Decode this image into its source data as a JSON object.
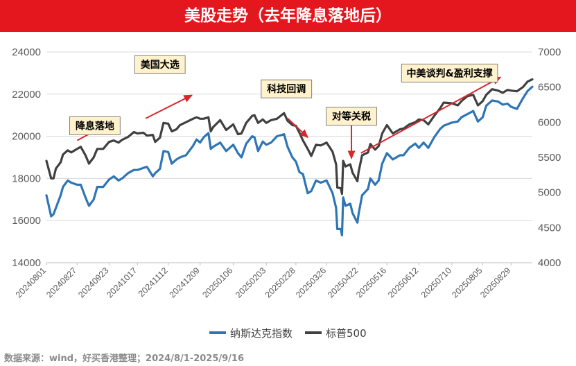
{
  "title": "美股走势（去年降息落地后）",
  "source": "数据来源：wind，好买香港整理；2024/8/1-2025/9/16",
  "colors": {
    "title_bg": "#e5171e",
    "nasdaq": "#2e75b6",
    "sp500": "#404040",
    "arrow": "#d9262b",
    "callout_bg": "#fff2cc",
    "axis_text": "#595959"
  },
  "chart_data": {
    "type": "line",
    "left_ylim": [
      14000,
      24000
    ],
    "left_yticks": [
      14000,
      16000,
      18000,
      20000,
      22000,
      24000
    ],
    "right_ylim": [
      4000,
      7000
    ],
    "right_yticks": [
      4000,
      4500,
      5000,
      5500,
      6000,
      6500,
      7000
    ],
    "x_ticks": [
      "20240801",
      "20240827",
      "20240923",
      "20241017",
      "20241112",
      "20241209",
      "20250106",
      "20250203",
      "20250228",
      "20250326",
      "20250422",
      "20250516",
      "20250612",
      "20250710",
      "20250805",
      "20250829"
    ],
    "grid": true,
    "legend_position": "bottom",
    "series": [
      {
        "name": "纳斯达克指数",
        "axis": "left",
        "x": [
          "20240801",
          "20240805",
          "20240807",
          "20240809",
          "20240813",
          "20240815",
          "20240819",
          "20240822",
          "20240827",
          "20240830",
          "20240903",
          "20240906",
          "20240910",
          "20240913",
          "20240918",
          "20240923",
          "20240927",
          "20241001",
          "20241004",
          "20241009",
          "20241014",
          "20241017",
          "20241022",
          "20241025",
          "20241030",
          "20241101",
          "20241105",
          "20241108",
          "20241112",
          "20241115",
          "20241119",
          "20241122",
          "20241127",
          "20241203",
          "20241206",
          "20241209",
          "20241212",
          "20241216",
          "20241218",
          "20241220",
          "20241226",
          "20241231",
          "20250106",
          "20250110",
          "20250113",
          "20250117",
          "20250122",
          "20250124",
          "20250127",
          "20250131",
          "20250203",
          "20250207",
          "20250212",
          "20250218",
          "20250221",
          "20250225",
          "20250228",
          "20250303",
          "20250306",
          "20250310",
          "20250313",
          "20250317",
          "20250321",
          "20250326",
          "20250331",
          "20250403",
          "20250404",
          "20250407",
          "20250408",
          "20250409",
          "20250411",
          "20250415",
          "20250417",
          "20250421",
          "20250422",
          "20250425",
          "20250430",
          "20250502",
          "20250506",
          "20250509",
          "20250512",
          "20250516",
          "20250521",
          "20250527",
          "20250530",
          "20250604",
          "20250609",
          "20250612",
          "20250616",
          "20250620",
          "20250625",
          "20250630",
          "20250703",
          "20250710",
          "20250715",
          "20250718",
          "20250723",
          "20250728",
          "20250801",
          "20250805",
          "20250808",
          "20250813",
          "20250818",
          "20250822",
          "20250826",
          "20250829",
          "20250903",
          "20250908",
          "20250912",
          "20250916"
        ],
        "values": [
          17200,
          16200,
          16300,
          16600,
          17200,
          17600,
          17900,
          17800,
          17700,
          17700,
          17100,
          16700,
          17000,
          17600,
          17600,
          17950,
          18100,
          17900,
          18000,
          18250,
          18400,
          18400,
          18500,
          18550,
          18100,
          18250,
          18450,
          19300,
          19250,
          18700,
          18900,
          19000,
          19100,
          19550,
          19850,
          19700,
          19950,
          20150,
          19400,
          19500,
          19700,
          19300,
          19600,
          19200,
          19000,
          19650,
          20000,
          19950,
          19300,
          19750,
          19600,
          19700,
          20000,
          20100,
          19500,
          19000,
          18800,
          18300,
          18200,
          17300,
          17400,
          17900,
          17800,
          17900,
          17300,
          16600,
          15600,
          15600,
          15300,
          17100,
          16700,
          16800,
          16350,
          15900,
          16300,
          17200,
          17500,
          18000,
          17700,
          17900,
          18700,
          19200,
          18900,
          19100,
          19100,
          19450,
          19650,
          19450,
          19700,
          19450,
          19950,
          20350,
          20500,
          20650,
          20700,
          20900,
          21050,
          21200,
          20700,
          20900,
          21450,
          21700,
          21650,
          21500,
          21550,
          21400,
          21300,
          21800,
          22150,
          22350
        ]
      },
      {
        "name": "标普500",
        "axis": "right",
        "x": [
          "20240801",
          "20240805",
          "20240807",
          "20240809",
          "20240813",
          "20240815",
          "20240819",
          "20240822",
          "20240827",
          "20240830",
          "20240903",
          "20240906",
          "20240910",
          "20240913",
          "20240918",
          "20240923",
          "20240927",
          "20241001",
          "20241004",
          "20241009",
          "20241014",
          "20241017",
          "20241022",
          "20241025",
          "20241030",
          "20241101",
          "20241105",
          "20241108",
          "20241112",
          "20241115",
          "20241119",
          "20241122",
          "20241127",
          "20241203",
          "20241206",
          "20241209",
          "20241212",
          "20241216",
          "20241218",
          "20241220",
          "20241226",
          "20241231",
          "20250106",
          "20250110",
          "20250113",
          "20250117",
          "20250122",
          "20250124",
          "20250127",
          "20250131",
          "20250203",
          "20250207",
          "20250212",
          "20250218",
          "20250221",
          "20250225",
          "20250228",
          "20250303",
          "20250306",
          "20250310",
          "20250313",
          "20250317",
          "20250321",
          "20250326",
          "20250331",
          "20250403",
          "20250404",
          "20250407",
          "20250408",
          "20250409",
          "20250411",
          "20250415",
          "20250417",
          "20250421",
          "20250422",
          "20250425",
          "20250430",
          "20250502",
          "20250506",
          "20250509",
          "20250512",
          "20250516",
          "20250521",
          "20250527",
          "20250530",
          "20250604",
          "20250609",
          "20250612",
          "20250616",
          "20250620",
          "20250625",
          "20250630",
          "20250703",
          "20250710",
          "20250715",
          "20250718",
          "20250723",
          "20250728",
          "20250801",
          "20250805",
          "20250808",
          "20250813",
          "20250818",
          "20250822",
          "20250826",
          "20250829",
          "20250903",
          "20250908",
          "20250912",
          "20250916"
        ],
        "values": [
          5450,
          5200,
          5200,
          5340,
          5430,
          5540,
          5600,
          5570,
          5620,
          5650,
          5530,
          5410,
          5500,
          5620,
          5620,
          5720,
          5740,
          5710,
          5750,
          5790,
          5860,
          5840,
          5850,
          5810,
          5820,
          5720,
          5780,
          5990,
          5980,
          5870,
          5900,
          5960,
          6000,
          6050,
          6070,
          6050,
          6050,
          6070,
          5870,
          5930,
          6030,
          5890,
          5970,
          5830,
          5840,
          5990,
          6090,
          6100,
          5990,
          6040,
          5990,
          6030,
          6050,
          6130,
          6020,
          5960,
          5950,
          5850,
          5740,
          5620,
          5520,
          5680,
          5670,
          5710,
          5580,
          5400,
          5070,
          5060,
          4980,
          5450,
          5370,
          5400,
          5280,
          5160,
          5290,
          5530,
          5570,
          5690,
          5610,
          5660,
          5840,
          5960,
          5840,
          5900,
          5910,
          5970,
          6000,
          6040,
          6030,
          5970,
          6090,
          6200,
          6280,
          6270,
          6240,
          6300,
          6370,
          6390,
          6240,
          6300,
          6390,
          6470,
          6450,
          6420,
          6460,
          6450,
          6440,
          6500,
          6580,
          6610
        ]
      }
    ],
    "annotations": [
      {
        "text": "降息落地",
        "at": "20240911",
        "value_left": 20500,
        "arrow_from": [
          "20240827",
          19800
        ],
        "arrow_to": [
          "20240919",
          20500
        ]
      },
      {
        "text": "美国大选",
        "at": "20241105",
        "value_left": 23400,
        "arrow_from": [
          "20241024",
          20850
        ],
        "arrow_to": [
          "20241202",
          21950
        ]
      },
      {
        "text": "科技回调",
        "at": "20250220",
        "value_left": 22250,
        "arrow_from": [
          "20250221",
          20850
        ],
        "arrow_to": [
          "20250310",
          19950
        ]
      },
      {
        "text": "对等关税",
        "at": "20250416",
        "value_left": 20950,
        "arrow_from": [
          "20250416",
          20600
        ],
        "arrow_to": [
          "20250416",
          18950
        ]
      },
      {
        "text": "中美谈判&盈利支撑",
        "at": "20250708",
        "value_left": 23000,
        "arrow_from": [
          "20250424",
          19200
        ],
        "arrow_to": [
          "20250820",
          22800
        ]
      }
    ]
  }
}
